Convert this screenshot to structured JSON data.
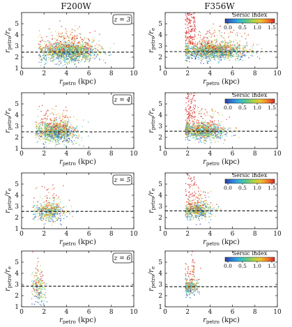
{
  "columns": [
    {
      "title": "F200W"
    },
    {
      "title": "F356W"
    }
  ],
  "chart_data": {
    "type": "scatter",
    "x_axis": {
      "label_base": "r",
      "label_sub": "petro",
      "label_unit": " (kpc)",
      "xlim": [
        0,
        10
      ],
      "ticks": [
        0,
        2,
        4,
        6,
        8,
        10
      ]
    },
    "y_axis": {
      "label_parts": [
        "r",
        "petro",
        "/r",
        "e"
      ],
      "ylim": [
        1,
        6
      ],
      "ticks": [
        1,
        2,
        3,
        4,
        5
      ]
    },
    "colorbar": {
      "title": "Sérsic index",
      "range": [
        0.0,
        1.5
      ],
      "ticks": [
        "0.0",
        "0.5",
        "1.0",
        "1.5"
      ],
      "colors": [
        "#2b3c9e",
        "#2f7fd8",
        "#33b6d6",
        "#59c98a",
        "#a9d44a",
        "#f0c431",
        "#f37b2a",
        "#d7282a"
      ]
    },
    "panels": [
      {
        "row": 0,
        "col": 0,
        "filter": "F200W",
        "redshift": "z = 3",
        "ref_y": 2.45,
        "point_count": 1500,
        "x_center": 4.2,
        "x_spread": 1.3,
        "x_min": 1.5,
        "x_max": 9.5,
        "y_center": 2.5,
        "y_spread": 0.45,
        "red_tail": false
      },
      {
        "row": 0,
        "col": 1,
        "filter": "F356W",
        "redshift": "",
        "ref_y": 2.5,
        "point_count": 1700,
        "x_center": 4.3,
        "x_spread": 1.5,
        "x_min": 1.8,
        "x_max": 9.8,
        "y_center": 2.55,
        "y_spread": 0.35,
        "red_tail": true
      },
      {
        "row": 1,
        "col": 0,
        "filter": "F200W",
        "redshift": "z = 4",
        "ref_y": 2.5,
        "point_count": 1100,
        "x_center": 3.1,
        "x_spread": 0.9,
        "x_min": 1.2,
        "x_max": 8.0,
        "y_center": 2.5,
        "y_spread": 0.45,
        "red_tail": false
      },
      {
        "row": 1,
        "col": 1,
        "filter": "F356W",
        "redshift": "",
        "ref_y": 2.55,
        "point_count": 1200,
        "x_center": 3.3,
        "x_spread": 1.0,
        "x_min": 1.8,
        "x_max": 9.0,
        "y_center": 2.55,
        "y_spread": 0.35,
        "red_tail": true
      },
      {
        "row": 2,
        "col": 0,
        "filter": "F200W",
        "redshift": "z = 5",
        "ref_y": 2.55,
        "point_count": 500,
        "x_center": 2.5,
        "x_spread": 0.7,
        "x_min": 1.0,
        "x_max": 5.0,
        "y_center": 2.55,
        "y_spread": 0.4,
        "red_tail": false
      },
      {
        "row": 2,
        "col": 1,
        "filter": "F356W",
        "redshift": "",
        "ref_y": 2.6,
        "point_count": 650,
        "x_center": 2.8,
        "x_spread": 0.7,
        "x_min": 1.8,
        "x_max": 5.5,
        "y_center": 2.6,
        "y_spread": 0.35,
        "red_tail": true
      },
      {
        "row": 3,
        "col": 0,
        "filter": "F200W",
        "redshift": "z = 6",
        "ref_y": 2.85,
        "point_count": 200,
        "x_center": 1.5,
        "x_spread": 0.3,
        "x_min": 0.9,
        "x_max": 2.4,
        "y_center": 2.7,
        "y_spread": 0.7,
        "red_tail": true
      },
      {
        "row": 3,
        "col": 1,
        "filter": "F356W",
        "redshift": "",
        "ref_y": 2.8,
        "point_count": 300,
        "x_center": 2.2,
        "x_spread": 0.4,
        "x_min": 1.8,
        "x_max": 3.3,
        "y_center": 2.75,
        "y_spread": 0.35,
        "red_tail": true
      }
    ]
  }
}
